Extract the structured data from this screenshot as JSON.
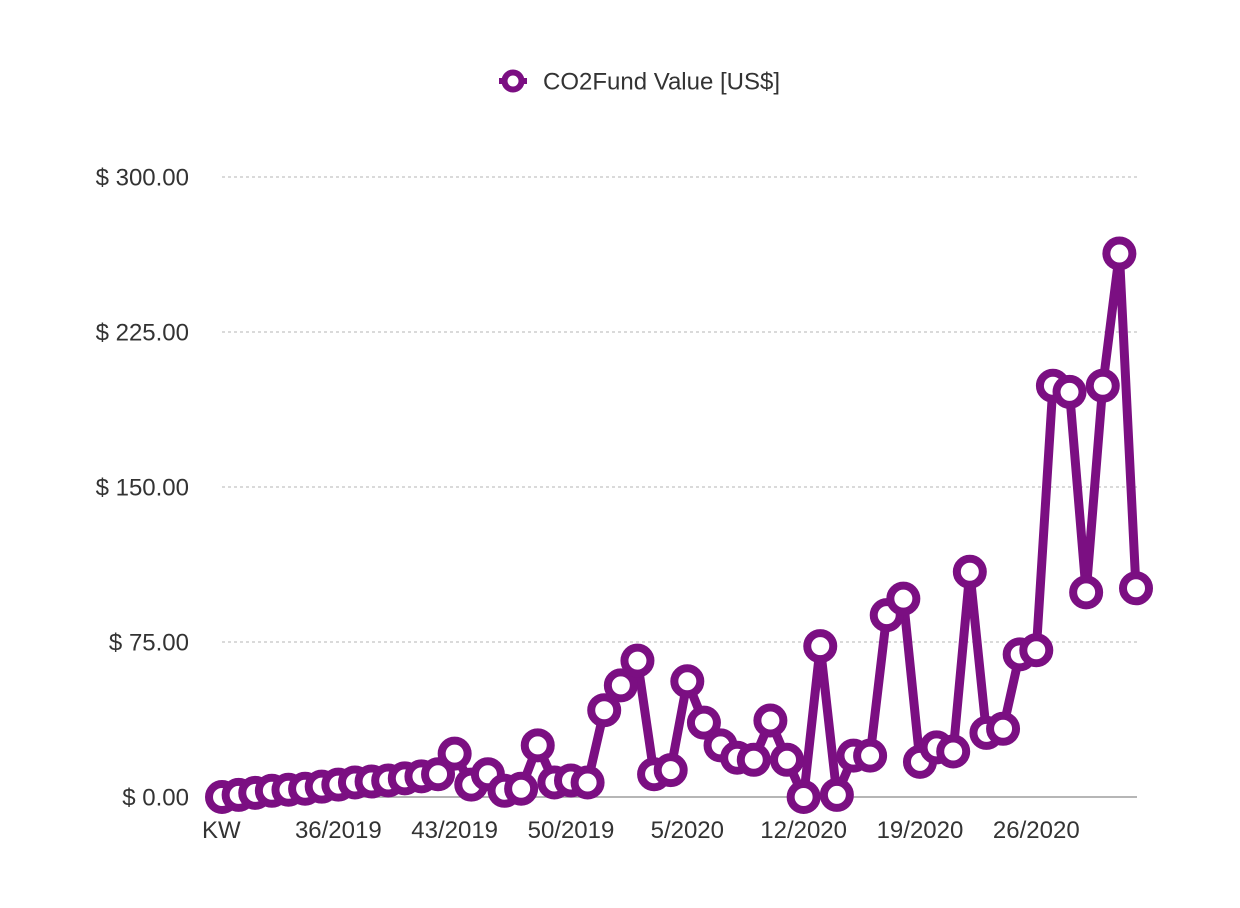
{
  "chart_data": {
    "type": "line",
    "title": "",
    "legend": {
      "position": "top-center"
    },
    "colors": {
      "series": "#7b0f82",
      "marker_fill": "#ffffff",
      "grid": "#b5b5b5",
      "text": "#333333"
    },
    "y_tick_labels": [
      "$ 0.00",
      "$ 75.00",
      "$ 150.00",
      "$ 225.00",
      "$ 300.00"
    ],
    "y_ticks": [
      0,
      75,
      150,
      225,
      300
    ],
    "ylim": [
      0,
      300
    ],
    "x_tick_labels": [
      {
        "index": 0,
        "label": "KW"
      },
      {
        "index": 7,
        "label": "36/2019"
      },
      {
        "index": 14,
        "label": "43/2019"
      },
      {
        "index": 21,
        "label": "50/2019"
      },
      {
        "index": 28,
        "label": "5/2020"
      },
      {
        "index": 35,
        "label": "12/2020"
      },
      {
        "index": 42,
        "label": "19/2020"
      },
      {
        "index": 49,
        "label": "26/2020"
      }
    ],
    "series": [
      {
        "name": "CO2Fund Value [US$]",
        "values": [
          0,
          1,
          2,
          3,
          3.5,
          4,
          5,
          6,
          7,
          7.5,
          8,
          9,
          10,
          11,
          21,
          6,
          11,
          3,
          4,
          25,
          7,
          8,
          7,
          42,
          54,
          66,
          11,
          13,
          56,
          36,
          25,
          19,
          18,
          37,
          18,
          0,
          73,
          1,
          20,
          20,
          88,
          96,
          17,
          24,
          22,
          109,
          31,
          33,
          69,
          71,
          199,
          196,
          99,
          199,
          263,
          101
        ]
      }
    ]
  }
}
